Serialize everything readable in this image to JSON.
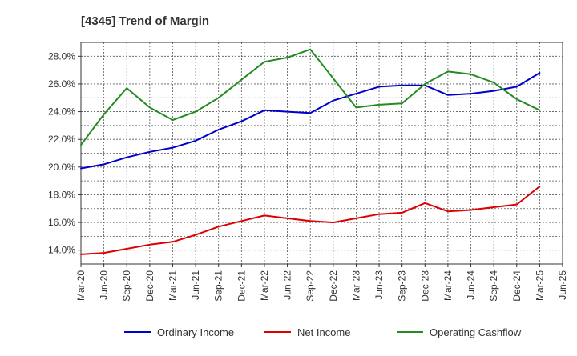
{
  "chart_data": {
    "type": "line",
    "title": "[4345]  Trend of Margin",
    "x": [
      "Mar-20",
      "Jun-20",
      "Sep-20",
      "Dec-20",
      "Mar-21",
      "Jun-21",
      "Sep-21",
      "Dec-21",
      "Mar-22",
      "Jun-22",
      "Sep-22",
      "Dec-22",
      "Mar-23",
      "Jun-23",
      "Sep-23",
      "Dec-23",
      "Mar-24",
      "Jun-24",
      "Sep-24",
      "Dec-24",
      "Mar-25",
      "Jun-25"
    ],
    "y_ticks": [
      "14.0%",
      "16.0%",
      "18.0%",
      "20.0%",
      "22.0%",
      "24.0%",
      "26.0%",
      "28.0%"
    ],
    "ylim": [
      13.0,
      29.0
    ],
    "grid": true,
    "legend_position": "bottom",
    "series": [
      {
        "name": "Ordinary Income",
        "color": "#0000cc",
        "values": [
          19.9,
          20.2,
          20.7,
          21.1,
          21.4,
          21.9,
          22.7,
          23.3,
          24.1,
          24.0,
          23.9,
          24.8,
          25.3,
          25.8,
          25.9,
          25.9,
          25.2,
          25.3,
          25.5,
          25.8,
          26.8,
          null
        ]
      },
      {
        "name": "Net Income",
        "color": "#dd0000",
        "values": [
          13.7,
          13.8,
          14.1,
          14.4,
          14.6,
          15.1,
          15.7,
          16.1,
          16.5,
          16.3,
          16.1,
          16.0,
          16.3,
          16.6,
          16.7,
          17.4,
          16.8,
          16.9,
          17.1,
          17.3,
          18.6,
          null
        ]
      },
      {
        "name": "Operating Cashflow",
        "color": "#228b22",
        "values": [
          21.6,
          23.8,
          25.7,
          24.3,
          23.4,
          24.0,
          25.0,
          26.3,
          27.6,
          27.9,
          28.5,
          26.4,
          24.3,
          24.5,
          24.6,
          26.0,
          26.9,
          26.7,
          26.1,
          24.9,
          24.1,
          null
        ]
      }
    ]
  }
}
